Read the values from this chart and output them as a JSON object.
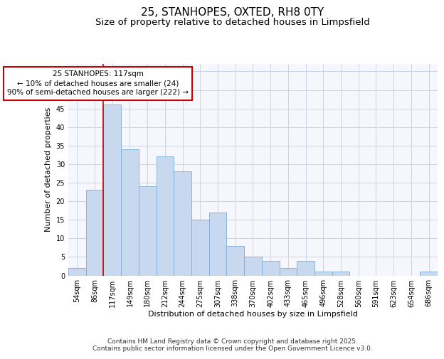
{
  "title": "25, STANHOPES, OXTED, RH8 0TY",
  "subtitle": "Size of property relative to detached houses in Limpsfield",
  "xlabel": "Distribution of detached houses by size in Limpsfield",
  "ylabel": "Number of detached properties",
  "categories": [
    "54sqm",
    "86sqm",
    "117sqm",
    "149sqm",
    "180sqm",
    "212sqm",
    "244sqm",
    "275sqm",
    "307sqm",
    "338sqm",
    "370sqm",
    "402sqm",
    "433sqm",
    "465sqm",
    "496sqm",
    "528sqm",
    "560sqm",
    "591sqm",
    "623sqm",
    "654sqm",
    "686sqm"
  ],
  "values": [
    2,
    23,
    46,
    34,
    24,
    32,
    28,
    15,
    17,
    8,
    5,
    4,
    2,
    4,
    1,
    1,
    0,
    0,
    0,
    0,
    1
  ],
  "bar_color": "#c8d8ee",
  "bar_edge_color": "#7aadd4",
  "highlight_index": 2,
  "highlight_line_color": "#cc0000",
  "ylim": [
    0,
    57
  ],
  "yticks": [
    0,
    5,
    10,
    15,
    20,
    25,
    30,
    35,
    40,
    45,
    50,
    55
  ],
  "annotation_line1": "25 STANHOPES: 117sqm",
  "annotation_line2": "← 10% of detached houses are smaller (24)",
  "annotation_line3": "90% of semi-detached houses are larger (222) →",
  "annotation_box_color": "#ffffff",
  "annotation_box_edge_color": "#cc0000",
  "footer_line1": "Contains HM Land Registry data © Crown copyright and database right 2025.",
  "footer_line2": "Contains public sector information licensed under the Open Government Licence v3.0.",
  "background_color": "#ffffff",
  "plot_bg_color": "#f5f7fd",
  "grid_color": "#c8d4e8",
  "title_fontsize": 11,
  "subtitle_fontsize": 9.5,
  "axis_label_fontsize": 8,
  "tick_fontsize": 7,
  "annotation_fontsize": 7.5,
  "footer_fontsize": 6.5
}
